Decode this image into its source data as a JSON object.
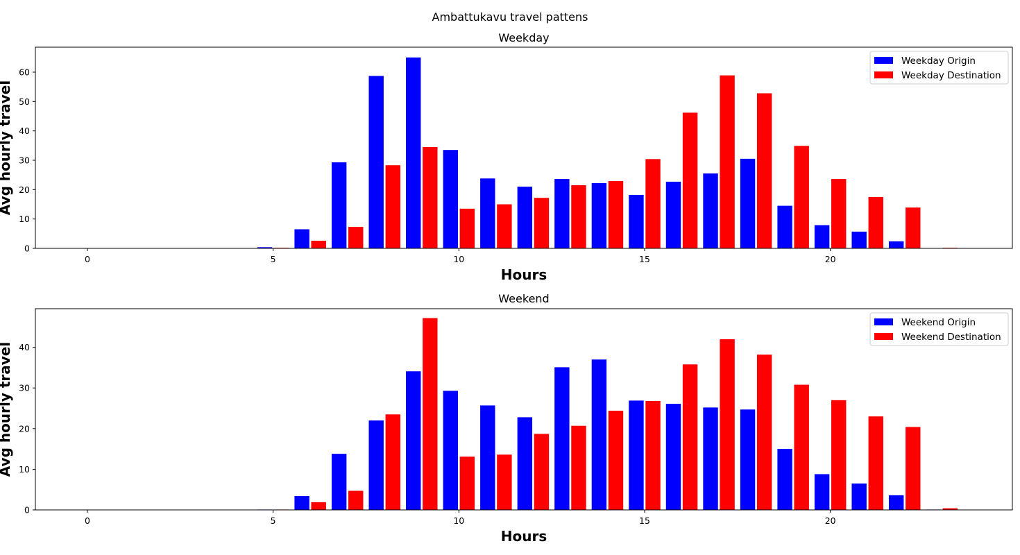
{
  "figure": {
    "suptitle": "Ambattukavu travel pattens"
  },
  "chart_data": [
    {
      "type": "bar",
      "title": "Weekday",
      "xlabel": "Hours",
      "ylabel": "Avg hourly travel",
      "x": [
        0,
        1,
        2,
        3,
        4,
        5,
        6,
        7,
        8,
        9,
        10,
        11,
        12,
        13,
        14,
        15,
        16,
        17,
        18,
        19,
        20,
        21,
        22,
        23
      ],
      "xlim": [
        -1.4,
        24.9
      ],
      "ylim": [
        0,
        68.5
      ],
      "xticks": [
        0,
        5,
        10,
        15,
        20
      ],
      "yticks": [
        0,
        10,
        20,
        30,
        40,
        50,
        60
      ],
      "grid": false,
      "legend_position": "top-right",
      "series": [
        {
          "name": "Weekday Origin",
          "color": "#0000ff",
          "values": [
            0,
            0,
            0,
            0,
            0,
            0.4,
            6.5,
            29.3,
            58.7,
            65.0,
            33.5,
            23.8,
            21.0,
            23.6,
            22.2,
            18.2,
            22.7,
            25.5,
            30.5,
            14.5,
            7.9,
            5.7,
            2.4,
            0
          ]
        },
        {
          "name": "Weekday Destination",
          "color": "#ff0000",
          "values": [
            0,
            0,
            0,
            0,
            0,
            0.2,
            2.6,
            7.3,
            28.3,
            34.5,
            13.5,
            15.0,
            17.2,
            21.5,
            22.9,
            30.4,
            46.2,
            58.9,
            52.8,
            34.9,
            23.6,
            17.5,
            13.9,
            0.2
          ]
        }
      ]
    },
    {
      "type": "bar",
      "title": "Weekend",
      "xlabel": "Hours",
      "ylabel": "Avg hourly travel",
      "x": [
        0,
        1,
        2,
        3,
        4,
        5,
        6,
        7,
        8,
        9,
        10,
        11,
        12,
        13,
        14,
        15,
        16,
        17,
        18,
        19,
        20,
        21,
        22,
        23
      ],
      "xlim": [
        -1.4,
        24.9
      ],
      "ylim": [
        0,
        49.5
      ],
      "xticks": [
        0,
        5,
        10,
        15,
        20
      ],
      "yticks": [
        0,
        10,
        20,
        30,
        40
      ],
      "grid": false,
      "legend_position": "top-right",
      "series": [
        {
          "name": "Weekend Origin",
          "color": "#0000ff",
          "values": [
            0,
            0,
            0,
            0,
            0,
            0.1,
            3.4,
            13.8,
            22.0,
            34.1,
            29.3,
            25.7,
            22.8,
            35.1,
            37.0,
            26.9,
            26.1,
            25.2,
            24.7,
            15.0,
            8.8,
            6.5,
            3.6,
            0.1
          ]
        },
        {
          "name": "Weekend Destination",
          "color": "#ff0000",
          "values": [
            0,
            0,
            0,
            0,
            0,
            0.1,
            1.9,
            4.7,
            23.5,
            47.2,
            13.1,
            13.6,
            18.7,
            20.7,
            24.4,
            26.8,
            35.8,
            42.0,
            38.2,
            30.8,
            27.0,
            23.0,
            20.4,
            0.4
          ]
        }
      ]
    }
  ]
}
